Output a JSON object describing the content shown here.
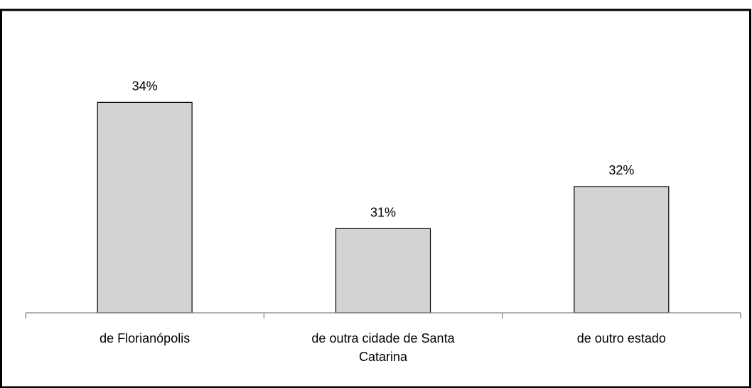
{
  "chart_data": {
    "type": "bar",
    "categories": [
      [
        "de Florianópolis"
      ],
      [
        "de outra cidade de Santa",
        "Catarina"
      ],
      [
        "de outro estado"
      ]
    ],
    "values": [
      34,
      31,
      32
    ],
    "data_labels": [
      "34%",
      "31%",
      "32%"
    ],
    "unit": "%",
    "title": "",
    "xlabel": "",
    "ylabel": "",
    "ylim": [
      29,
      35
    ],
    "grid": false,
    "legend": "none",
    "colors": {
      "bar_fill": "#d3d3d3",
      "bar_stroke": "#000000",
      "axis": "#808080",
      "frame": "#000000"
    }
  }
}
